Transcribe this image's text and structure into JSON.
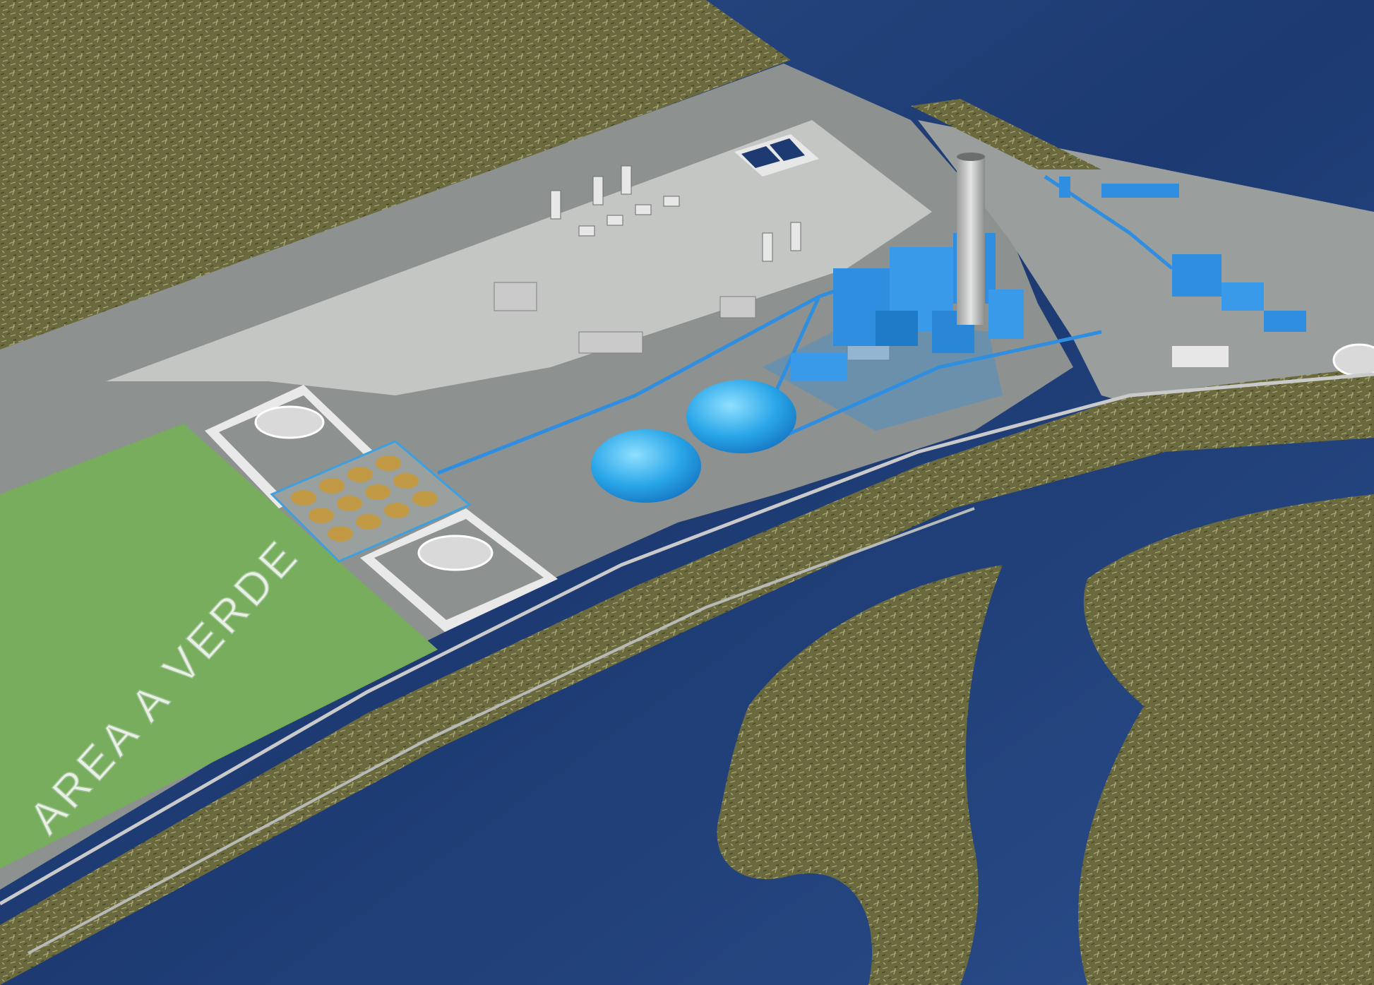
{
  "scene": {
    "type": "aerial 3D rendering of an industrial power plant site",
    "label_green_area": "AREA  A VERDE",
    "colors": {
      "sea": "#1d3a72",
      "sea_light": "#3a5e9a",
      "vegetation": "#6b6a3f",
      "vegetation_light": "#8f8c5c",
      "platform": "#8d918f",
      "platform_light": "#c4c6c4",
      "green_area": "#78ad5e",
      "plant_blue": "#2f8ee0",
      "dome_blue": "#29a6e8",
      "stockpile": "#c29a45"
    }
  }
}
